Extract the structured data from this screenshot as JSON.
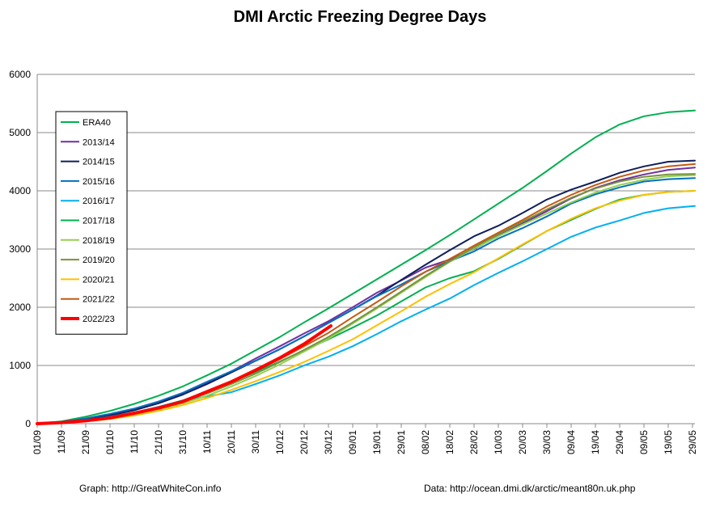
{
  "chart_data": {
    "type": "line",
    "title": "DMI Arctic Freezing Degree Days",
    "xlabel": "",
    "ylabel": "",
    "ylim": [
      0,
      6000
    ],
    "yticks": [
      0,
      1000,
      2000,
      3000,
      4000,
      5000,
      6000
    ],
    "xlim": [
      0,
      271
    ],
    "xticks": [
      {
        "day": 0,
        "label": "01/09"
      },
      {
        "day": 10,
        "label": "11/09"
      },
      {
        "day": 20,
        "label": "21/09"
      },
      {
        "day": 30,
        "label": "01/10"
      },
      {
        "day": 40,
        "label": "11/10"
      },
      {
        "day": 50,
        "label": "21/10"
      },
      {
        "day": 60,
        "label": "31/10"
      },
      {
        "day": 70,
        "label": "10/11"
      },
      {
        "day": 80,
        "label": "20/11"
      },
      {
        "day": 90,
        "label": "30/11"
      },
      {
        "day": 100,
        "label": "10/12"
      },
      {
        "day": 110,
        "label": "20/12"
      },
      {
        "day": 120,
        "label": "30/12"
      },
      {
        "day": 130,
        "label": "09/01"
      },
      {
        "day": 140,
        "label": "19/01"
      },
      {
        "day": 150,
        "label": "29/01"
      },
      {
        "day": 160,
        "label": "08/02"
      },
      {
        "day": 170,
        "label": "18/02"
      },
      {
        "day": 180,
        "label": "28/02"
      },
      {
        "day": 190,
        "label": "10/03"
      },
      {
        "day": 200,
        "label": "20/03"
      },
      {
        "day": 210,
        "label": "30/03"
      },
      {
        "day": 220,
        "label": "09/04"
      },
      {
        "day": 230,
        "label": "19/04"
      },
      {
        "day": 240,
        "label": "29/04"
      },
      {
        "day": 250,
        "label": "09/05"
      },
      {
        "day": 260,
        "label": "19/05"
      },
      {
        "day": 270,
        "label": "29/05"
      }
    ],
    "grid": true,
    "legend_position": "top-left",
    "series": [
      {
        "name": "ERA40",
        "color": "#00b050",
        "width": 2,
        "x": [
          0,
          10,
          20,
          30,
          40,
          50,
          60,
          70,
          80,
          90,
          100,
          110,
          120,
          130,
          140,
          150,
          160,
          170,
          180,
          190,
          200,
          210,
          220,
          230,
          240,
          250,
          260,
          271
        ],
        "y": [
          0,
          40,
          120,
          220,
          340,
          480,
          640,
          830,
          1030,
          1260,
          1490,
          1740,
          1980,
          2230,
          2480,
          2730,
          2980,
          3240,
          3510,
          3780,
          4050,
          4340,
          4640,
          4920,
          5140,
          5280,
          5350,
          5380
        ]
      },
      {
        "name": "2013/14",
        "color": "#7030a0",
        "width": 2,
        "x": [
          0,
          10,
          20,
          30,
          40,
          50,
          60,
          70,
          80,
          90,
          100,
          110,
          120,
          130,
          140,
          150,
          160,
          170,
          180,
          190,
          200,
          210,
          220,
          230,
          240,
          250,
          260,
          271
        ],
        "y": [
          0,
          20,
          80,
          150,
          250,
          370,
          510,
          700,
          900,
          1120,
          1330,
          1550,
          1760,
          2000,
          2250,
          2460,
          2680,
          2820,
          3000,
          3230,
          3440,
          3650,
          3870,
          4050,
          4180,
          4280,
          4360,
          4400
        ]
      },
      {
        "name": "2014/15",
        "color": "#0f1f5a",
        "width": 2,
        "x": [
          0,
          10,
          20,
          30,
          40,
          50,
          60,
          70,
          80,
          90,
          100,
          110,
          120,
          130,
          140,
          150,
          160,
          170,
          180,
          190,
          200,
          210,
          220,
          230,
          240,
          250,
          260,
          271
        ],
        "y": [
          0,
          20,
          70,
          140,
          230,
          350,
          500,
          680,
          880,
          1080,
          1280,
          1500,
          1730,
          1960,
          2200,
          2470,
          2730,
          2980,
          3220,
          3400,
          3620,
          3850,
          4020,
          4160,
          4310,
          4420,
          4500,
          4520
        ]
      },
      {
        "name": "2015/16",
        "color": "#0070c0",
        "width": 2,
        "x": [
          0,
          10,
          20,
          30,
          40,
          50,
          60,
          70,
          80,
          90,
          100,
          110,
          120,
          130,
          140,
          150,
          160,
          170,
          180,
          190,
          200,
          210,
          220,
          230,
          240,
          250,
          260,
          271
        ],
        "y": [
          0,
          30,
          90,
          170,
          260,
          380,
          530,
          720,
          900,
          1080,
          1280,
          1500,
          1730,
          1960,
          2190,
          2390,
          2610,
          2790,
          2960,
          3180,
          3360,
          3560,
          3780,
          3940,
          4060,
          4160,
          4200,
          4220
        ]
      },
      {
        "name": "2016/17",
        "color": "#00b0f0",
        "width": 2,
        "x": [
          0,
          10,
          20,
          30,
          40,
          50,
          60,
          70,
          80,
          90,
          100,
          110,
          120,
          130,
          140,
          150,
          160,
          170,
          180,
          190,
          200,
          210,
          220,
          230,
          240,
          250,
          260,
          271
        ],
        "y": [
          0,
          20,
          60,
          120,
          190,
          290,
          400,
          470,
          540,
          680,
          830,
          1000,
          1150,
          1330,
          1540,
          1760,
          1960,
          2150,
          2380,
          2590,
          2790,
          3000,
          3210,
          3370,
          3490,
          3620,
          3700,
          3740
        ]
      },
      {
        "name": "2017/18",
        "color": "#00b050",
        "width": 2,
        "x": [
          0,
          10,
          20,
          30,
          40,
          50,
          60,
          70,
          80,
          90,
          100,
          110,
          120,
          130,
          140,
          150,
          160,
          170,
          180,
          190,
          200,
          210,
          220,
          230,
          240,
          250,
          260,
          271
        ],
        "y": [
          0,
          20,
          60,
          110,
          180,
          280,
          400,
          550,
          720,
          890,
          1070,
          1260,
          1450,
          1650,
          1860,
          2100,
          2340,
          2500,
          2620,
          2830,
          3070,
          3310,
          3500,
          3690,
          3850,
          3930,
          3980,
          4000
        ]
      },
      {
        "name": "2018/19",
        "color": "#92d050",
        "width": 2,
        "x": [
          0,
          10,
          20,
          30,
          40,
          50,
          60,
          70,
          80,
          90,
          100,
          110,
          120,
          130,
          140,
          150,
          160,
          170,
          180,
          190,
          200,
          210,
          220,
          230,
          240,
          250,
          260,
          271
        ],
        "y": [
          0,
          10,
          40,
          90,
          150,
          240,
          350,
          480,
          640,
          820,
          1020,
          1240,
          1460,
          1720,
          1980,
          2250,
          2520,
          2780,
          3010,
          3220,
          3420,
          3610,
          3800,
          3970,
          4100,
          4190,
          4250,
          4270
        ]
      },
      {
        "name": "2019/20",
        "color": "#77933c",
        "width": 2,
        "x": [
          0,
          10,
          20,
          30,
          40,
          50,
          60,
          70,
          80,
          90,
          100,
          110,
          120,
          130,
          140,
          150,
          160,
          170,
          180,
          190,
          200,
          210,
          220,
          230,
          240,
          250,
          260,
          271
        ],
        "y": [
          0,
          15,
          50,
          110,
          180,
          270,
          380,
          520,
          680,
          860,
          1060,
          1270,
          1490,
          1740,
          2000,
          2270,
          2540,
          2790,
          3030,
          3260,
          3470,
          3680,
          3880,
          4040,
          4160,
          4240,
          4280,
          4290
        ]
      },
      {
        "name": "2020/21",
        "color": "#ffc000",
        "width": 2,
        "x": [
          0,
          10,
          20,
          30,
          40,
          50,
          60,
          70,
          80,
          90,
          100,
          110,
          120,
          130,
          140,
          150,
          160,
          170,
          180,
          190,
          200,
          210,
          220,
          230,
          240,
          250,
          260,
          271
        ],
        "y": [
          0,
          10,
          40,
          80,
          140,
          220,
          320,
          440,
          580,
          730,
          890,
          1060,
          1250,
          1450,
          1690,
          1930,
          2180,
          2400,
          2600,
          2840,
          3080,
          3310,
          3520,
          3700,
          3830,
          3930,
          3980,
          4000
        ]
      },
      {
        "name": "2021/22",
        "color": "#c55a11",
        "width": 2,
        "x": [
          0,
          10,
          20,
          30,
          40,
          50,
          60,
          70,
          80,
          90,
          100,
          110,
          120,
          130,
          140,
          150,
          160,
          170,
          180,
          190,
          200,
          210,
          220,
          230,
          240,
          250,
          260,
          271
        ],
        "y": [
          0,
          15,
          50,
          100,
          170,
          260,
          380,
          540,
          720,
          910,
          1110,
          1330,
          1560,
          1830,
          2090,
          2360,
          2610,
          2830,
          3060,
          3280,
          3500,
          3730,
          3930,
          4100,
          4240,
          4350,
          4420,
          4460
        ]
      },
      {
        "name": "2022/23",
        "color": "#ff0000",
        "width": 4,
        "x": [
          0,
          10,
          20,
          30,
          40,
          50,
          60,
          70,
          80,
          90,
          100,
          110,
          121
        ],
        "y": [
          0,
          20,
          50,
          100,
          180,
          270,
          380,
          550,
          720,
          920,
          1130,
          1370,
          1680
        ]
      }
    ]
  },
  "footer": {
    "graph_credit": "Graph: http://GreatWhiteCon.info",
    "data_credit": "Data: http://ocean.dmi.dk/arctic/meant80n.uk.php"
  }
}
